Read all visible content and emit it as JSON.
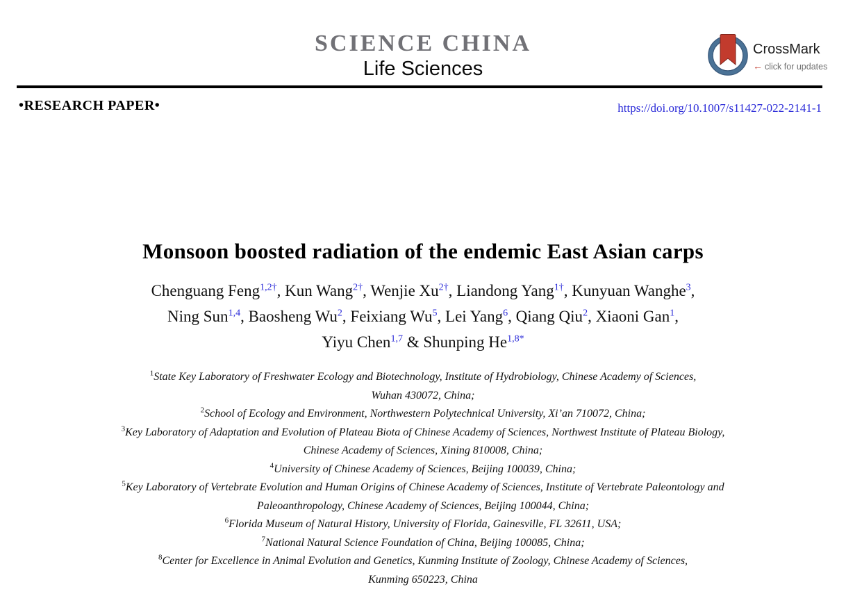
{
  "journal": {
    "name": "SCIENCE CHINA",
    "subtitle": "Life Sciences"
  },
  "crossmark": {
    "label": "CrossMark",
    "arrow": "←",
    "tagline": "click for updates"
  },
  "paper_type": "•RESEARCH PAPER•",
  "doi": "https://doi.org/10.1007/s11427-022-2141-1",
  "title": "Monsoon boosted radiation of the endemic East Asian carps",
  "authors": {
    "lines": [
      [
        {
          "name": "Chenguang Feng",
          "sup": "1,2†",
          "sep": ", "
        },
        {
          "name": "Kun Wang",
          "sup": "2†",
          "sep": ", "
        },
        {
          "name": "Wenjie Xu",
          "sup": "2†",
          "sep": ", "
        },
        {
          "name": "Liandong Yang",
          "sup": "1†",
          "sep": ", "
        },
        {
          "name": "Kunyuan Wanghe",
          "sup": "3",
          "sep": ","
        }
      ],
      [
        {
          "name": "Ning Sun",
          "sup": "1,4",
          "sep": ", "
        },
        {
          "name": "Baosheng Wu",
          "sup": "2",
          "sep": ", "
        },
        {
          "name": "Feixiang Wu",
          "sup": "5",
          "sep": ", "
        },
        {
          "name": "Lei Yang",
          "sup": "6",
          "sep": ", "
        },
        {
          "name": "Qiang Qiu",
          "sup": "2",
          "sep": ", "
        },
        {
          "name": "Xiaoni Gan",
          "sup": "1",
          "sep": ","
        }
      ],
      [
        {
          "name": "Yiyu Chen",
          "sup": "1,7",
          "sep": " & "
        },
        {
          "name": "Shunping He",
          "sup": "1,8*",
          "sep": ""
        }
      ]
    ]
  },
  "affiliations": [
    {
      "sup": "1",
      "lines": [
        "State Key Laboratory of Freshwater Ecology and Biotechnology, Institute of Hydrobiology, Chinese Academy of Sciences,",
        "Wuhan 430072, China;"
      ]
    },
    {
      "sup": "2",
      "lines": [
        "School of Ecology and Environment, Northwestern Polytechnical University, Xi’an 710072, China;"
      ]
    },
    {
      "sup": "3",
      "lines": [
        "Key Laboratory of Adaptation and Evolution of Plateau Biota of Chinese Academy of Sciences, Northwest Institute of Plateau Biology,",
        "Chinese Academy of Sciences, Xining 810008, China;"
      ]
    },
    {
      "sup": "4",
      "lines": [
        "University of Chinese Academy of Sciences, Beijing 100039, China;"
      ]
    },
    {
      "sup": "5",
      "lines": [
        "Key Laboratory of Vertebrate Evolution and Human Origins of Chinese Academy of Sciences, Institute of Vertebrate Paleontology and",
        "Paleoanthropology, Chinese Academy of Sciences, Beijing 100044, China;"
      ]
    },
    {
      "sup": "6",
      "lines": [
        "Florida Museum of Natural History, University of Florida, Gainesville, FL 32611, USA;"
      ]
    },
    {
      "sup": "7",
      "lines": [
        "National Natural Science Foundation of China, Beijing 100085, China;"
      ]
    },
    {
      "sup": "8",
      "lines": [
        "Center for Excellence in Animal Evolution and Genetics, Kunming Institute of Zoology, Chinese Academy of Sciences,",
        "Kunming 650223, China"
      ]
    }
  ],
  "colors": {
    "journal_gray": "#717176",
    "link_blue": "#2a2ad8",
    "crossmark_ring_blue": "#4a7296",
    "crossmark_red": "#c23b2d",
    "rule_black": "#000000"
  }
}
